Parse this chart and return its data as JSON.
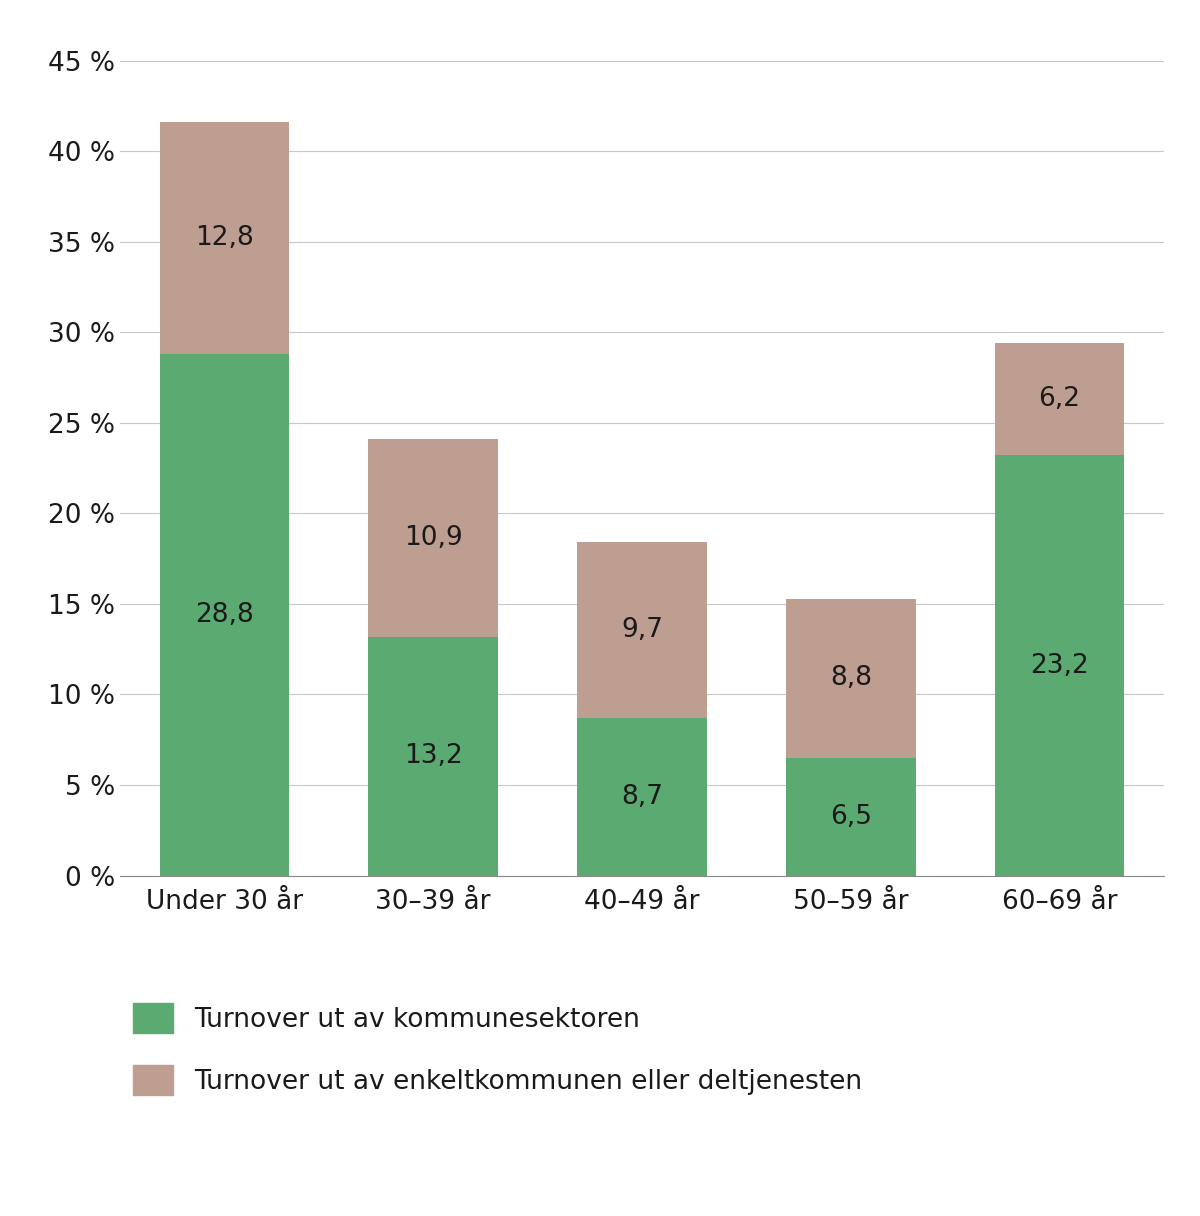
{
  "categories": [
    "Under 30 år",
    "30–39 år",
    "40–49 år",
    "50–59 år",
    "60–69 år"
  ],
  "green_values": [
    28.8,
    13.2,
    8.7,
    6.5,
    23.2
  ],
  "pink_values": [
    12.8,
    10.9,
    9.7,
    8.8,
    6.2
  ],
  "green_color": "#5aaa72",
  "pink_color": "#bf9e92",
  "green_label": "Turnover ut av kommunesektoren",
  "pink_label": "Turnover ut av enkeltkommunen eller deltjenesten",
  "ylim": [
    0,
    45
  ],
  "yticks": [
    0,
    5,
    10,
    15,
    20,
    25,
    30,
    35,
    40,
    45
  ],
  "ytick_labels": [
    "0 %",
    "5 %",
    "10 %",
    "15 %",
    "20 %",
    "25 %",
    "30 %",
    "35 %",
    "40 %",
    "45 %"
  ],
  "bar_width": 0.62,
  "background_color": "#ffffff",
  "text_color": "#1a1a1a",
  "tick_fontsize": 19,
  "legend_fontsize": 19,
  "value_fontsize": 19
}
